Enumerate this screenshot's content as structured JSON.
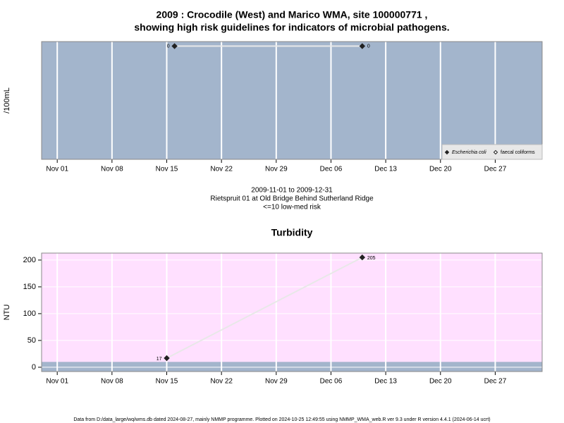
{
  "chart_data": [
    {
      "type": "line",
      "title": [
        "2009 : Crocodile (West) and Marico WMA, site 100000771 ,",
        "showing high risk guidelines for indicators of microbial pathogens."
      ],
      "y_label": "/100mL",
      "background": "#a3b5cc",
      "xlim": [
        "Oct 30",
        "Jan 02"
      ],
      "xticks": [
        "Nov 01",
        "Nov 08",
        "Nov 15",
        "Nov 22",
        "Nov 29",
        "Dec 06",
        "Dec 13",
        "Dec 20",
        "Dec 27"
      ],
      "ylim": [
        -25,
        1
      ],
      "grid": true,
      "legend": "lower right",
      "series": [
        {
          "name": "Escherichia coli",
          "color": "#222222",
          "line_color": "#e8e8e8",
          "x": [
            "Nov 16",
            "Dec 10"
          ],
          "values": [
            0,
            0
          ]
        },
        {
          "name": "faecal coliforms",
          "color": "#ffffff",
          "line_color": "#e8e8e8",
          "x": [],
          "values": []
        }
      ],
      "annotations": [
        "2009-11-01 to 2009-12-31",
        "Rietspruit 01 at Old Bridge Behind Sutherland Ridge",
        "<=10 low-med risk"
      ]
    },
    {
      "type": "line",
      "title": [
        "Turbidity"
      ],
      "y_label": "NTU",
      "background": "#ffe0ff",
      "bands": [
        {
          "from": -8,
          "to": 10,
          "color": "#a3b5cc"
        }
      ],
      "xlim": [
        "Oct 30",
        "Jan 02"
      ],
      "xticks": [
        "Nov 01",
        "Nov 08",
        "Nov 15",
        "Nov 22",
        "Nov 29",
        "Dec 06",
        "Dec 13",
        "Dec 20",
        "Dec 27"
      ],
      "ylim": [
        -8,
        213
      ],
      "yticks": [
        0,
        50,
        100,
        150,
        200
      ],
      "grid": true,
      "series": [
        {
          "name": "Turbidity",
          "color": "#222222",
          "line_color": "#e8e8e8",
          "x": [
            "Nov 15",
            "Dec 10"
          ],
          "values": [
            17,
            205
          ]
        }
      ]
    }
  ],
  "footer": "Data from D:/data_large/wq/wms.db dated 2024-08-27, mainly NMMP programme. Plotted on 2024-10-25 12:49:55 using NMMP_WMA_web.R ver 9.3 under R version 4.4.1 (2024-06-14 ucrt)"
}
